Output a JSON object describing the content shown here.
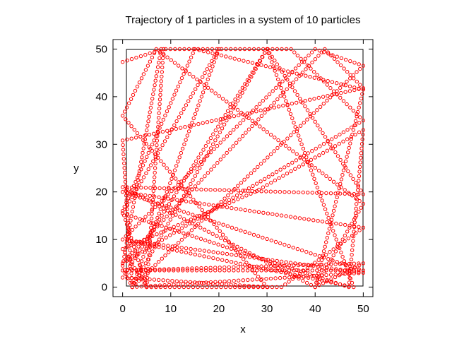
{
  "chart_data": {
    "type": "scatter",
    "title": "Trajectory of 1 particles in a system of 10 particles",
    "xlabel": "x",
    "ylabel": "y",
    "xlim": [
      -2,
      52
    ],
    "ylim": [
      -2,
      52
    ],
    "xticks": [
      0,
      10,
      20,
      30,
      40,
      50
    ],
    "yticks": [
      0,
      10,
      20,
      30,
      40,
      50
    ],
    "xtick_labels": [
      "0",
      "10",
      "20",
      "30",
      "40",
      "50"
    ],
    "ytick_labels": [
      "0",
      "10",
      "20",
      "30",
      "40",
      "50"
    ],
    "grid": false,
    "legend": "none",
    "marker": "open-circle",
    "series": [
      {
        "color": "#ff0000",
        "path": [
          [
            0,
            47.3
          ],
          [
            8.5,
            50
          ],
          [
            5,
            0
          ],
          [
            0,
            16
          ],
          [
            15,
            50
          ],
          [
            50,
            41.5
          ],
          [
            40,
            0
          ],
          [
            0,
            21
          ],
          [
            50,
            19.5
          ],
          [
            30,
            50
          ],
          [
            2,
            0
          ],
          [
            0,
            30.8
          ],
          [
            50,
            41.8
          ],
          [
            42,
            50
          ],
          [
            0,
            5
          ],
          [
            50,
            35
          ],
          [
            35,
            50
          ],
          [
            8,
            50
          ],
          [
            0,
            4.5
          ],
          [
            2,
            0
          ],
          [
            50,
            46.5
          ],
          [
            40,
            50
          ],
          [
            0,
            10
          ],
          [
            48,
            0
          ],
          [
            30,
            50
          ],
          [
            0,
            2
          ],
          [
            30,
            0
          ],
          [
            0,
            36
          ],
          [
            7,
            50
          ],
          [
            50,
            17.5
          ],
          [
            40,
            0
          ],
          [
            50,
            5
          ],
          [
            0,
            3.5
          ],
          [
            50,
            3.5
          ],
          [
            0,
            20
          ],
          [
            50,
            12.5
          ],
          [
            33,
            0
          ],
          [
            5,
            0
          ],
          [
            0,
            8
          ],
          [
            27.5,
            20
          ],
          [
            50,
            33
          ],
          [
            47,
            0
          ],
          [
            0,
            15.5
          ],
          [
            20,
            50
          ],
          [
            2,
            0
          ],
          [
            50,
            3
          ],
          [
            0,
            10
          ]
        ]
      }
    ]
  }
}
